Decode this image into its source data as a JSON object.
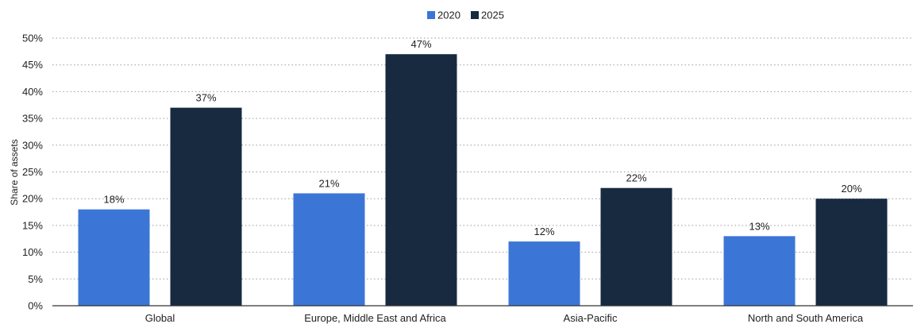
{
  "chart_data": {
    "type": "bar",
    "title": "",
    "xlabel": "",
    "ylabel": "Share of assets",
    "ylim": [
      0,
      50
    ],
    "ytick_step": 5,
    "ytick_suffix": "%",
    "grid": "horizontal-dotted",
    "legend_position": "top-center",
    "categories": [
      "Global",
      "Europe, Middle East and Africa",
      "Asia-Pacific",
      "North and South America"
    ],
    "series": [
      {
        "name": "2020",
        "color": "#3b76d6",
        "values": [
          18,
          21,
          12,
          13
        ],
        "labels": [
          "18%",
          "21%",
          "12%",
          "13%"
        ]
      },
      {
        "name": "2025",
        "color": "#172a40",
        "values": [
          37,
          47,
          22,
          20
        ],
        "labels": [
          "37%",
          "47%",
          "22%",
          "20%"
        ]
      }
    ]
  }
}
